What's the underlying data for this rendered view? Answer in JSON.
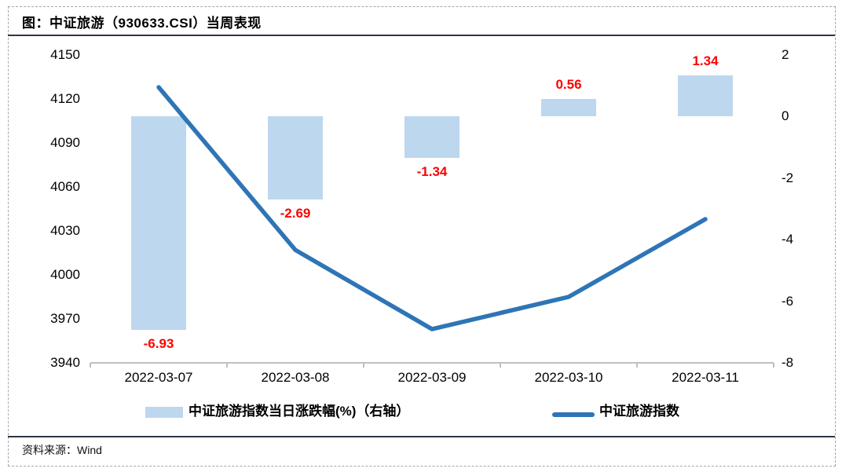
{
  "header": {
    "title": "图：中证旅游（930633.CSI）当周表现"
  },
  "footer": {
    "source": "资料来源：Wind"
  },
  "chart_data": {
    "type": "bar",
    "note": "combo chart: bars on right axis, line on left axis",
    "categories": [
      "2022-03-07",
      "2022-03-08",
      "2022-03-09",
      "2022-03-10",
      "2022-03-11"
    ],
    "series": [
      {
        "name": "中证旅游指数当日涨跌幅(%)（右轴）",
        "type": "bar",
        "axis": "right",
        "values": [
          -6.93,
          -2.69,
          -1.34,
          0.56,
          1.34
        ],
        "labels": [
          "-6.93",
          "-2.69",
          "-1.34",
          "0.56",
          "1.34"
        ],
        "color": "#BDD7EE",
        "label_color": "#FF0000"
      },
      {
        "name": "中证旅游指数",
        "type": "line",
        "axis": "left",
        "values": [
          4128,
          4017,
          3963,
          3985,
          4038
        ],
        "color": "#2E75B6"
      }
    ],
    "left_axis": {
      "min": 3940,
      "max": 4150,
      "ticks": [
        4150,
        4120,
        4090,
        4060,
        4030,
        4000,
        3970,
        3940
      ]
    },
    "right_axis": {
      "min": -8,
      "max": 2,
      "ticks": [
        2,
        0,
        -2,
        -4,
        -6,
        -8
      ]
    },
    "grid": false,
    "legend_position": "bottom",
    "axis_line_color": "#bfbfbf"
  }
}
